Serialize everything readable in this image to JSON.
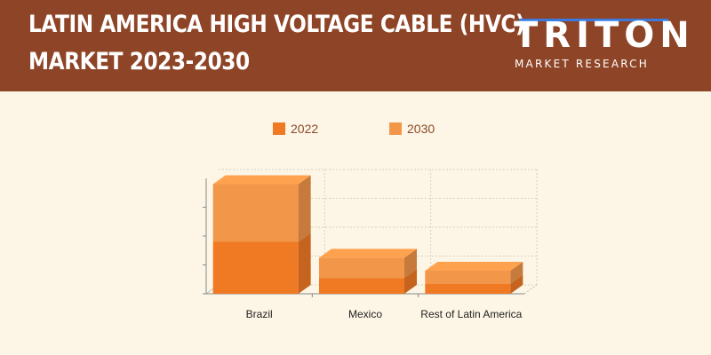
{
  "header": {
    "title_line1": "LATIN AMERICA HIGH VOLTAGE CABLE (HVC)",
    "title_line2": "MARKET 2023-2030",
    "logo_word": "TRITON",
    "logo_sub": "MARKET RESEARCH"
  },
  "colors": {
    "header_bg": "#8e4426",
    "background": "#fdf6e6",
    "series_2022": "#f07a24",
    "series_2030": "#f2964a",
    "logo_accent": "#3a7be0"
  },
  "chart_data": {
    "type": "bar",
    "stacked": true,
    "three_d": true,
    "categories": [
      "Brazil",
      "Mexico",
      "Rest of Latin America"
    ],
    "series": [
      {
        "name": "2022",
        "values": [
          1.8,
          0.55,
          0.35
        ]
      },
      {
        "name": "2030",
        "values": [
          2.0,
          0.7,
          0.45
        ]
      }
    ],
    "ylim": [
      0,
      4
    ],
    "yticks": [
      0,
      1,
      2,
      3
    ],
    "grid": true,
    "legend": "top-center",
    "title": "",
    "xlabel": "",
    "ylabel": ""
  }
}
